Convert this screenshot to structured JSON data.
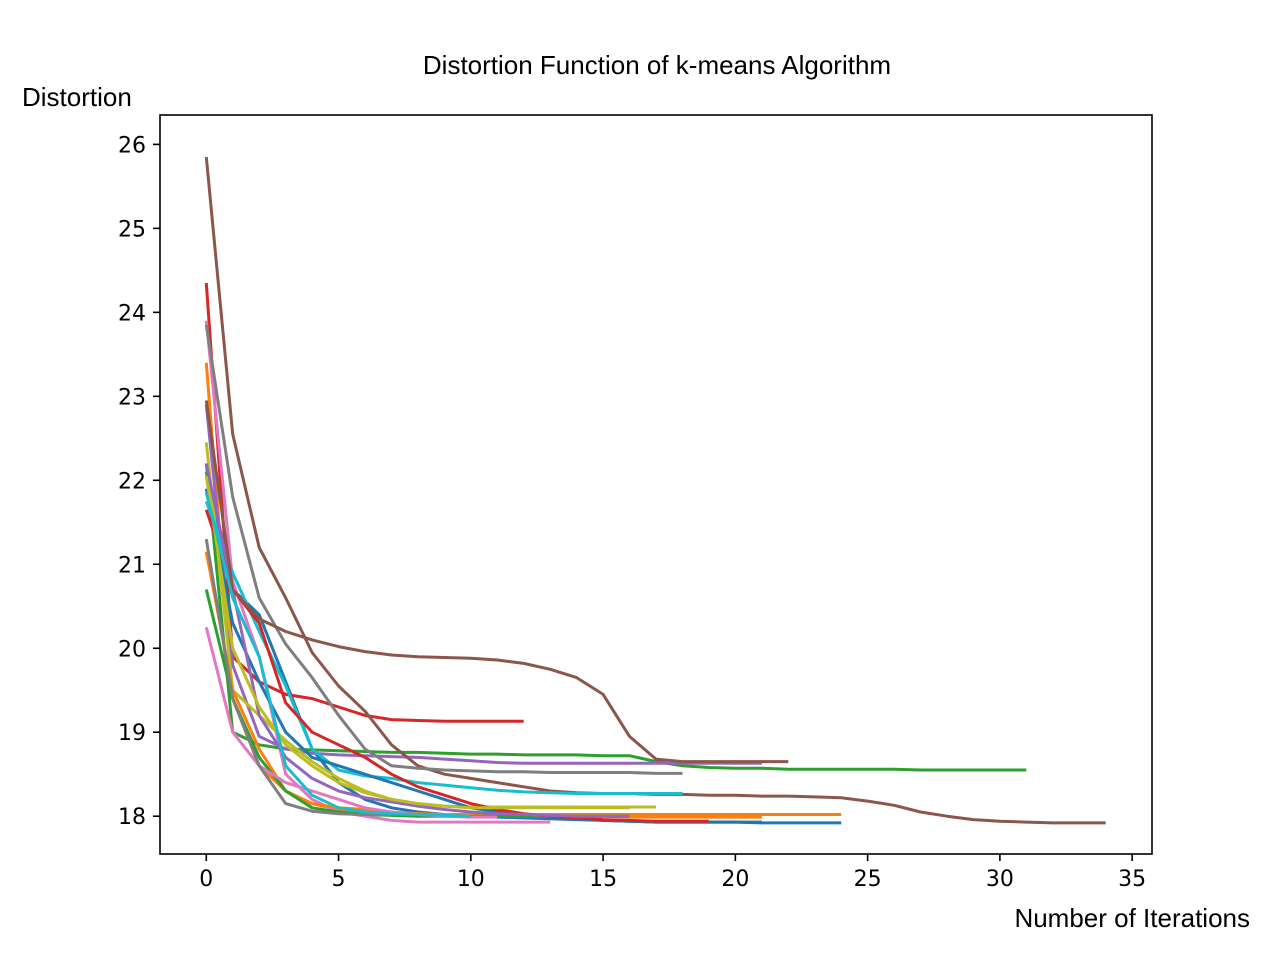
{
  "chart_data": {
    "type": "line",
    "title": "Distortion Function of k-means Algorithm",
    "xlabel": "Number of Iterations",
    "ylabel": "Distortion",
    "xlim": [
      -1.75,
      35.75
    ],
    "ylim": [
      17.55,
      26.35
    ],
    "xticks": [
      0,
      5,
      10,
      15,
      20,
      25,
      30,
      35
    ],
    "yticks": [
      18,
      19,
      20,
      21,
      22,
      23,
      24,
      25,
      26
    ],
    "grid": false,
    "legend": "none",
    "series": [
      {
        "color": "#1f77b4",
        "values": [
          22.1,
          20.7,
          20.4,
          19.6,
          18.8,
          18.4,
          18.2,
          18.1,
          18.05,
          18.02,
          18.0,
          17.99,
          17.98,
          17.97,
          17.96,
          17.95,
          17.94,
          17.93,
          17.93,
          17.93,
          17.93,
          17.92,
          17.92,
          17.92,
          17.92
        ]
      },
      {
        "color": "#ff7f0e",
        "values": [
          23.4,
          19.4,
          18.6,
          18.3,
          18.15,
          18.08,
          18.05,
          18.04,
          18.03,
          18.02,
          18.02,
          18.02,
          18.02,
          18.02,
          18.02,
          18.02,
          18.02,
          18.02,
          18.02,
          18.02,
          18.02,
          18.02,
          18.02,
          18.02,
          18.02
        ]
      },
      {
        "color": "#2ca02c",
        "values": [
          22.2,
          19.0,
          18.85,
          18.8,
          18.79,
          18.78,
          18.77,
          18.76,
          18.76,
          18.75,
          18.74,
          18.74,
          18.73,
          18.73,
          18.73,
          18.72,
          18.72,
          18.65,
          18.6,
          18.58,
          18.57,
          18.57,
          18.56,
          18.56,
          18.56,
          18.56,
          18.56,
          18.55,
          18.55,
          18.55,
          18.55,
          18.55
        ]
      },
      {
        "color": "#d62728",
        "values": [
          24.35,
          19.9,
          19.6,
          19.45,
          19.4,
          19.3,
          19.2,
          19.15,
          19.14,
          19.13,
          19.13,
          19.13,
          19.13
        ]
      },
      {
        "color": "#9467bd",
        "values": [
          22.9,
          19.8,
          18.95,
          18.8,
          18.75,
          18.73,
          18.72,
          18.71,
          18.7,
          18.68,
          18.66,
          18.64,
          18.63,
          18.63,
          18.63,
          18.63,
          18.63,
          18.63,
          18.63,
          18.63,
          18.63,
          18.63
        ]
      },
      {
        "color": "#8c564b",
        "values": [
          25.85,
          22.55,
          21.2,
          20.6,
          19.95,
          19.55,
          19.25,
          18.85,
          18.6,
          18.5,
          18.45,
          18.4,
          18.35,
          18.3,
          18.28,
          18.27,
          18.27,
          18.26,
          18.26,
          18.25,
          18.25,
          18.24,
          18.24,
          18.23,
          18.22,
          18.18,
          18.13,
          18.05,
          18.0,
          17.96,
          17.94,
          17.93,
          17.92,
          17.92,
          17.92
        ]
      },
      {
        "color": "#e377c2",
        "values": [
          23.9,
          20.8,
          19.9,
          18.5,
          18.2,
          18.05,
          18.0,
          17.95,
          17.93,
          17.93,
          17.93,
          17.93,
          17.93,
          17.93
        ]
      },
      {
        "color": "#7f7f7f",
        "values": [
          23.85,
          21.8,
          20.6,
          20.05,
          19.65,
          19.2,
          18.8,
          18.6,
          18.57,
          18.55,
          18.54,
          18.53,
          18.53,
          18.52,
          18.52,
          18.52,
          18.52,
          18.51,
          18.51
        ]
      },
      {
        "color": "#bcbd22",
        "values": [
          22.45,
          19.5,
          19.2,
          18.9,
          18.65,
          18.45,
          18.3,
          18.2,
          18.15,
          18.12,
          18.11,
          18.11,
          18.11,
          18.11,
          18.11,
          18.11,
          18.11,
          18.11
        ]
      },
      {
        "color": "#17becf",
        "values": [
          21.75,
          20.9,
          20.2,
          19.55,
          18.8,
          18.55,
          18.48,
          18.45,
          18.4,
          18.37,
          18.34,
          18.31,
          18.29,
          18.28,
          18.27,
          18.27,
          18.27,
          18.27,
          18.27
        ]
      },
      {
        "color": "#1f77b4",
        "values": [
          21.9,
          20.3,
          19.6,
          19.0,
          18.7,
          18.6,
          18.5,
          18.4,
          18.3,
          18.2,
          18.1,
          18.05,
          18.02,
          18.0,
          17.97,
          17.95,
          17.94,
          17.93,
          17.93,
          17.93,
          17.93,
          17.93
        ]
      },
      {
        "color": "#ff7f0e",
        "values": [
          21.15,
          19.5,
          18.8,
          18.3,
          18.15,
          18.1,
          18.08,
          18.05,
          18.03,
          18.02,
          18.01,
          18.0,
          18.0,
          18.0,
          18.0,
          18.0,
          17.99,
          17.99,
          17.99,
          17.99,
          17.99,
          17.99
        ]
      },
      {
        "color": "#2ca02c",
        "values": [
          20.7,
          19.4,
          18.7,
          18.3,
          18.1,
          18.05,
          18.02,
          18.01,
          18.0,
          18.0,
          18.0,
          18.0,
          18.0,
          18.0,
          18.0,
          18.0,
          18.0
        ]
      },
      {
        "color": "#d62728",
        "values": [
          21.65,
          20.7,
          20.3,
          19.35,
          19.0,
          18.85,
          18.7,
          18.5,
          18.35,
          18.25,
          18.15,
          18.08,
          18.03,
          18.0,
          17.98,
          17.96,
          17.95,
          17.94,
          17.94,
          17.94
        ]
      },
      {
        "color": "#9467bd",
        "values": [
          22.2,
          20.7,
          19.2,
          18.7,
          18.45,
          18.3,
          18.22,
          18.17,
          18.12,
          18.08,
          18.05,
          18.03,
          18.02,
          18.01,
          18.0,
          18.0,
          18.0
        ]
      },
      {
        "color": "#8c564b",
        "values": [
          22.95,
          20.7,
          20.35,
          20.2,
          20.1,
          20.02,
          19.96,
          19.92,
          19.9,
          19.89,
          19.88,
          19.86,
          19.82,
          19.75,
          19.65,
          19.45,
          18.95,
          18.68,
          18.65,
          18.65,
          18.65,
          18.65,
          18.65
        ]
      },
      {
        "color": "#e377c2",
        "values": [
          20.25,
          19.0,
          18.6,
          18.4,
          18.3,
          18.2,
          18.1,
          18.05,
          18.02,
          18.0,
          17.99,
          17.99
        ]
      },
      {
        "color": "#7f7f7f",
        "values": [
          21.3,
          19.4,
          18.6,
          18.15,
          18.06,
          18.03,
          18.02,
          18.02
        ]
      },
      {
        "color": "#bcbd22",
        "values": [
          22.05,
          20.0,
          19.3,
          18.85,
          18.6,
          18.4,
          18.28,
          18.2,
          18.15,
          18.12,
          18.1,
          18.1,
          18.1,
          18.1,
          18.1,
          18.1,
          18.1
        ]
      },
      {
        "color": "#17becf",
        "values": [
          21.85,
          20.6,
          19.9,
          18.6,
          18.25,
          18.1,
          18.05,
          18.03,
          18.02,
          18.01,
          18.0
        ]
      }
    ]
  }
}
